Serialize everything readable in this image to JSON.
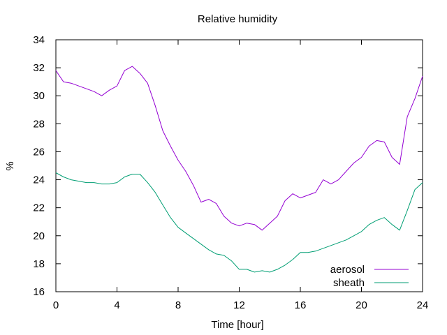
{
  "chart_data": {
    "type": "line",
    "title": "Relative humidity",
    "xlabel": "Time [hour]",
    "ylabel": "%",
    "xlim": [
      0,
      24
    ],
    "ylim": [
      16,
      34
    ],
    "xticks": [
      0,
      4,
      8,
      12,
      16,
      20,
      24
    ],
    "yticks": [
      16,
      18,
      20,
      22,
      24,
      26,
      28,
      30,
      32,
      34
    ],
    "grid": false,
    "legend_position": "bottom-right",
    "x": [
      0,
      0.5,
      1,
      1.5,
      2,
      2.5,
      3,
      3.5,
      4,
      4.5,
      5,
      5.5,
      6,
      6.5,
      7,
      7.5,
      8,
      8.5,
      9,
      9.5,
      10,
      10.5,
      11,
      11.5,
      12,
      12.5,
      13,
      13.5,
      14,
      14.5,
      15,
      15.5,
      16,
      16.5,
      17,
      17.5,
      18,
      18.5,
      19,
      19.5,
      20,
      20.5,
      21,
      21.5,
      22,
      22.5,
      23,
      23.5,
      24
    ],
    "series": [
      {
        "name": "aerosol",
        "color": "#9400d3",
        "values": [
          31.8,
          31.0,
          30.9,
          30.7,
          30.5,
          30.3,
          30.0,
          30.4,
          30.7,
          31.8,
          32.1,
          31.6,
          30.9,
          29.3,
          27.5,
          26.4,
          25.4,
          24.6,
          23.6,
          22.4,
          22.6,
          22.3,
          21.4,
          20.9,
          20.7,
          20.9,
          20.8,
          20.4,
          20.9,
          21.4,
          22.5,
          23.0,
          22.7,
          22.9,
          23.1,
          24.0,
          23.7,
          24.0,
          24.6,
          25.2,
          25.6,
          26.4,
          26.8,
          26.7,
          25.6,
          25.1,
          28.5,
          29.8,
          31.4
        ]
      },
      {
        "name": "sheath",
        "color": "#009e73",
        "values": [
          24.5,
          24.2,
          24.0,
          23.9,
          23.8,
          23.8,
          23.7,
          23.7,
          23.8,
          24.2,
          24.4,
          24.4,
          23.8,
          23.1,
          22.2,
          21.3,
          20.6,
          20.2,
          19.8,
          19.4,
          19.0,
          18.7,
          18.6,
          18.2,
          17.6,
          17.6,
          17.4,
          17.5,
          17.4,
          17.6,
          17.9,
          18.3,
          18.8,
          18.8,
          18.9,
          19.1,
          19.3,
          19.5,
          19.7,
          20.0,
          20.3,
          20.8,
          21.1,
          21.3,
          20.8,
          20.4,
          21.8,
          23.3,
          23.8
        ]
      }
    ]
  }
}
